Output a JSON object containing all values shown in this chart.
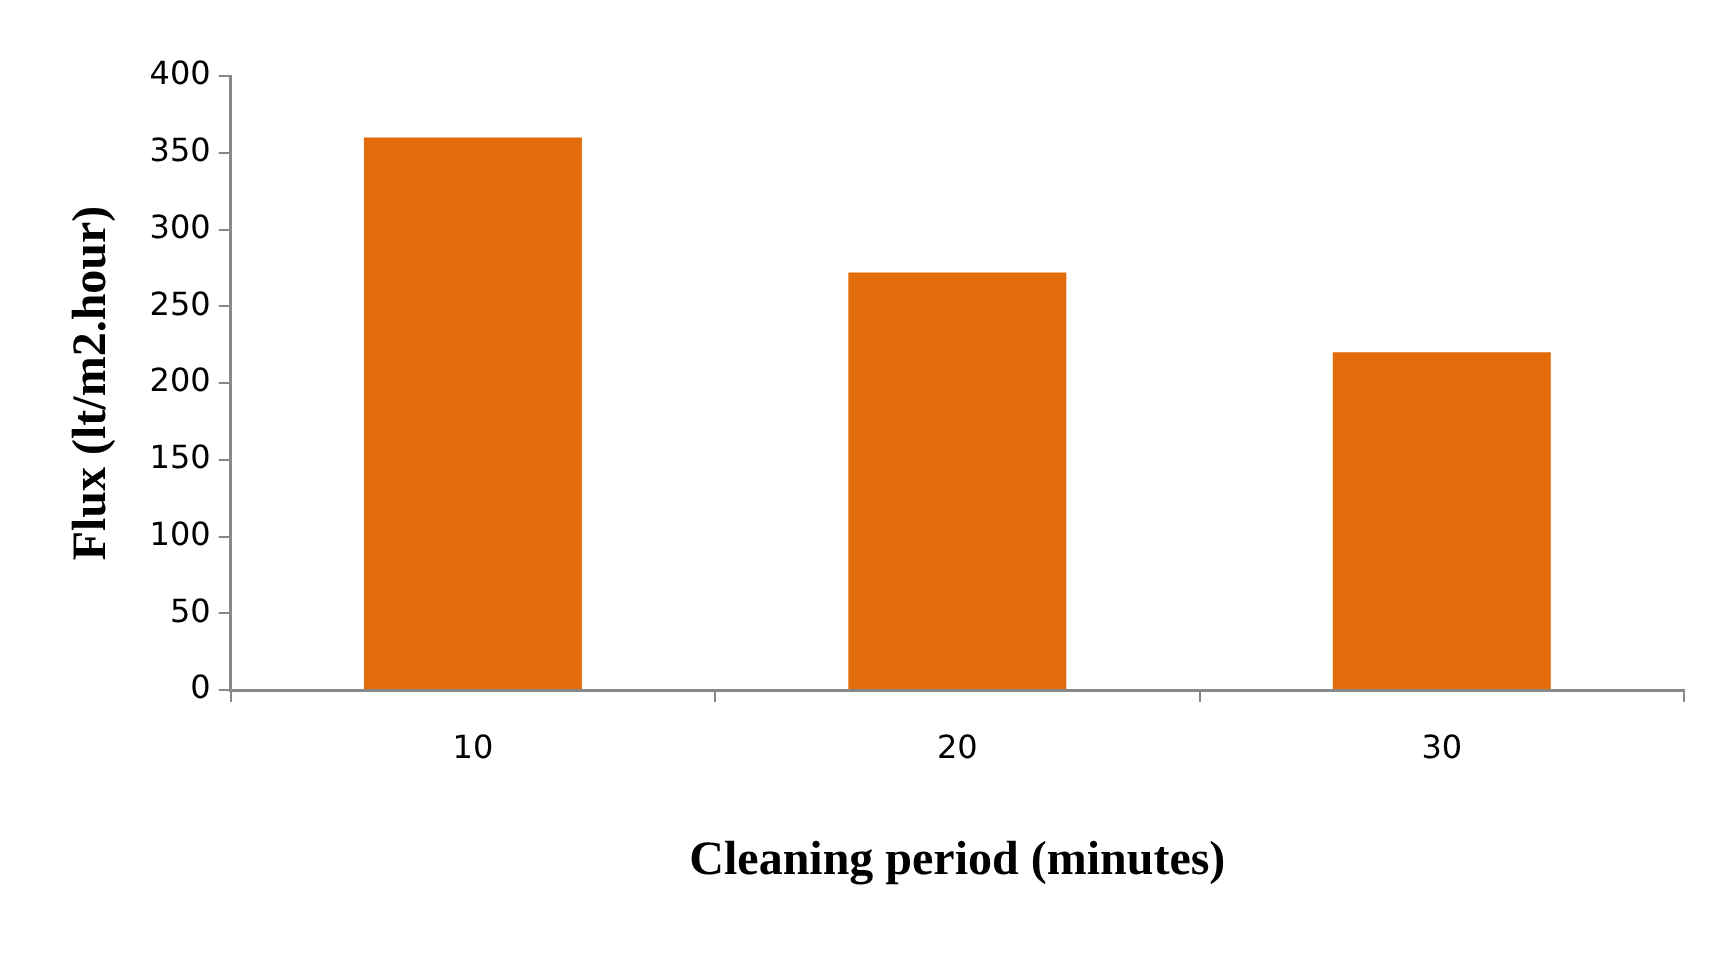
{
  "chart_data": {
    "type": "bar",
    "xlabel": "Cleaning period (minutes)",
    "ylabel": "Flux (lt/m2.hour)",
    "categories": [
      "10",
      "20",
      "30"
    ],
    "values": [
      360,
      272,
      220
    ],
    "color": "#e36c0a",
    "ylim": [
      0,
      400
    ],
    "yticks": [
      0,
      50,
      100,
      150,
      200,
      250,
      300,
      350,
      400
    ],
    "grid": false,
    "legend": false
  }
}
